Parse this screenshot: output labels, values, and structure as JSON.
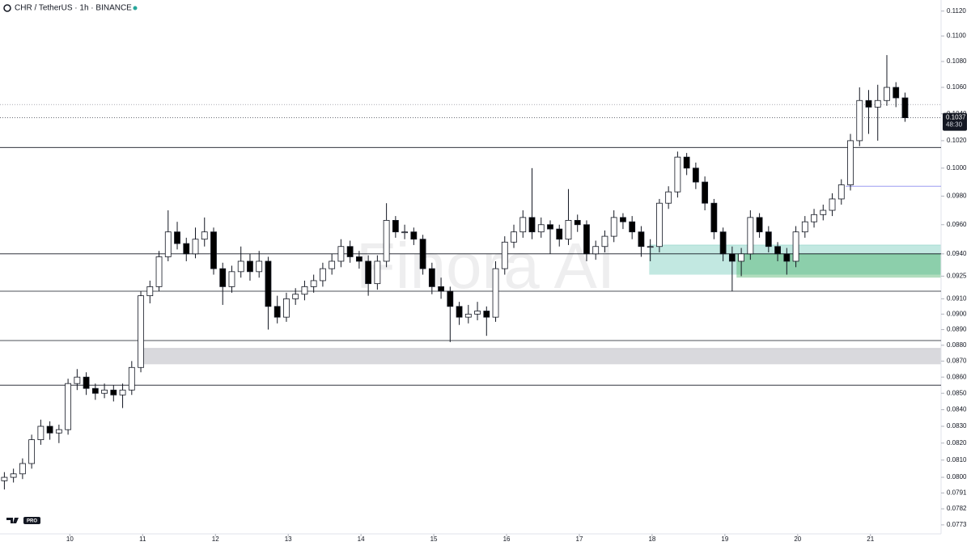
{
  "chart_data": {
    "type": "candlestick",
    "title": "CHR / TetherUS · 1h · BINANCE",
    "watermark": "Finora AI",
    "badge": "PRO",
    "log_scale": true,
    "up_color": "#ffffff",
    "down_color": "#000000",
    "xlim": [
      9.04,
      21.97
    ],
    "xticks": [
      10,
      11,
      12,
      13,
      14,
      15,
      16,
      17,
      18,
      19,
      20,
      21
    ],
    "ylim": [
      0.0768,
      0.1129
    ],
    "yticks": [
      {
        "value": 0.112,
        "label": "0.1120"
      },
      {
        "value": 0.11,
        "label": "0.1100"
      },
      {
        "value": 0.108,
        "label": "0.1080"
      },
      {
        "value": 0.106,
        "label": "0.1060"
      },
      {
        "value": 0.104,
        "label": "0.1040"
      },
      {
        "value": 0.102,
        "label": "0.1020"
      },
      {
        "value": 0.1,
        "label": "0.1000"
      },
      {
        "value": 0.098,
        "label": "0.0980"
      },
      {
        "value": 0.096,
        "label": "0.0960"
      },
      {
        "value": 0.094,
        "label": "0.0940"
      },
      0.0925,
      {
        "value": 0.091,
        "label": "0.0910"
      },
      {
        "value": 0.09,
        "label": "0.0900"
      },
      {
        "value": 0.089,
        "label": "0.0890"
      },
      {
        "value": 0.088,
        "label": "0.0880"
      },
      {
        "value": 0.087,
        "label": "0.0870"
      },
      {
        "value": 0.086,
        "label": "0.0860"
      },
      {
        "value": 0.085,
        "label": "0.0850"
      },
      {
        "value": 0.084,
        "label": "0.0840"
      },
      {
        "value": 0.083,
        "label": "0.0830"
      },
      {
        "value": 0.082,
        "label": "0.0820"
      },
      {
        "value": 0.081,
        "label": "0.0810"
      },
      {
        "value": 0.08,
        "label": "0.0800"
      },
      0.0791,
      0.0782,
      0.0773
    ],
    "last_price": 0.1037,
    "countdown": "48:30",
    "levels": [
      0.1015,
      0.094,
      0.0915,
      0.0883,
      0.0855
    ],
    "dotted_levels": [
      0.1047
    ],
    "blue_level": {
      "from": 20.66,
      "value": 0.0987,
      "color": "#9c9cf0"
    },
    "zones": [
      {
        "from": 10.99,
        "top": 0.0878,
        "bottom": 0.0868,
        "color": "rgba(160,160,170,0.4)"
      },
      {
        "from": 17.96,
        "top": 0.0946,
        "bottom": 0.0926,
        "color": "rgba(80,190,170,0.35)"
      },
      {
        "from": 19.16,
        "top": 0.094,
        "bottom": 0.0924,
        "color": "rgba(60,170,90,0.4)"
      }
    ],
    "x": [
      9.1,
      9.225,
      9.35,
      9.475,
      9.6,
      9.725,
      9.85,
      9.975,
      10.1,
      10.225,
      10.35,
      10.475,
      10.6,
      10.725,
      10.85,
      10.975,
      11.1,
      11.225,
      11.35,
      11.475,
      11.6,
      11.725,
      11.85,
      11.975,
      12.1,
      12.225,
      12.35,
      12.475,
      12.6,
      12.725,
      12.85,
      12.975,
      13.1,
      13.225,
      13.35,
      13.475,
      13.6,
      13.725,
      13.85,
      13.975,
      14.1,
      14.225,
      14.35,
      14.475,
      14.6,
      14.725,
      14.85,
      14.975,
      15.1,
      15.225,
      15.35,
      15.475,
      15.6,
      15.725,
      15.85,
      15.975,
      16.1,
      16.225,
      16.35,
      16.475,
      16.6,
      16.725,
      16.85,
      16.975,
      17.1,
      17.225,
      17.35,
      17.475,
      17.6,
      17.725,
      17.85,
      17.975,
      18.1,
      18.225,
      18.35,
      18.475,
      18.6,
      18.725,
      18.85,
      18.975,
      19.1,
      19.225,
      19.35,
      19.475,
      19.6,
      19.725,
      19.85,
      19.975,
      20.1,
      20.225,
      20.35,
      20.475,
      20.6,
      20.725,
      20.85,
      20.975,
      21.1,
      21.225,
      21.35,
      21.475
    ],
    "candles": [
      [
        0.0798,
        0.0803,
        0.0793,
        0.08
      ],
      [
        0.08,
        0.0805,
        0.0797,
        0.0802
      ],
      [
        0.0802,
        0.0811,
        0.0799,
        0.0808
      ],
      [
        0.0808,
        0.0825,
        0.0805,
        0.0822
      ],
      [
        0.0822,
        0.0834,
        0.0819,
        0.083
      ],
      [
        0.083,
        0.0833,
        0.0822,
        0.0826
      ],
      [
        0.0826,
        0.0831,
        0.082,
        0.0828
      ],
      [
        0.0828,
        0.0859,
        0.0825,
        0.0856
      ],
      [
        0.0856,
        0.0865,
        0.0852,
        0.086
      ],
      [
        0.086,
        0.0863,
        0.0849,
        0.0853
      ],
      [
        0.0853,
        0.0856,
        0.0846,
        0.085
      ],
      [
        0.085,
        0.0856,
        0.0847,
        0.0852
      ],
      [
        0.0852,
        0.0855,
        0.0845,
        0.0849
      ],
      [
        0.0849,
        0.0856,
        0.0841,
        0.0852
      ],
      [
        0.0852,
        0.087,
        0.0849,
        0.0866
      ],
      [
        0.0866,
        0.0915,
        0.0863,
        0.0912
      ],
      [
        0.0912,
        0.0922,
        0.0907,
        0.0918
      ],
      [
        0.0918,
        0.0942,
        0.0915,
        0.0938
      ],
      [
        0.0938,
        0.097,
        0.0935,
        0.0955
      ],
      [
        0.0955,
        0.0962,
        0.0943,
        0.0947
      ],
      [
        0.0947,
        0.0951,
        0.0935,
        0.094
      ],
      [
        0.094,
        0.0958,
        0.0937,
        0.095
      ],
      [
        0.095,
        0.0965,
        0.0945,
        0.0955
      ],
      [
        0.0955,
        0.0958,
        0.0926,
        0.093
      ],
      [
        0.093,
        0.0934,
        0.0906,
        0.0918
      ],
      [
        0.0918,
        0.0932,
        0.0914,
        0.0928
      ],
      [
        0.0928,
        0.0945,
        0.0924,
        0.0935
      ],
      [
        0.0935,
        0.094,
        0.0922,
        0.0928
      ],
      [
        0.0928,
        0.0942,
        0.0924,
        0.0935
      ],
      [
        0.0935,
        0.0938,
        0.089,
        0.0905
      ],
      [
        0.0905,
        0.0912,
        0.0894,
        0.0898
      ],
      [
        0.0898,
        0.0914,
        0.0895,
        0.091
      ],
      [
        0.091,
        0.0917,
        0.0906,
        0.0913
      ],
      [
        0.0913,
        0.0922,
        0.0909,
        0.0918
      ],
      [
        0.0918,
        0.0926,
        0.0914,
        0.0922
      ],
      [
        0.0922,
        0.0934,
        0.0918,
        0.093
      ],
      [
        0.093,
        0.094,
        0.0926,
        0.0935
      ],
      [
        0.0935,
        0.095,
        0.0931,
        0.0945
      ],
      [
        0.0945,
        0.0949,
        0.0934,
        0.0938
      ],
      [
        0.0938,
        0.0942,
        0.093,
        0.0935
      ],
      [
        0.0935,
        0.0939,
        0.0912,
        0.092
      ],
      [
        0.092,
        0.0939,
        0.0916,
        0.0935
      ],
      [
        0.0935,
        0.0975,
        0.0931,
        0.0963
      ],
      [
        0.0963,
        0.0966,
        0.0951,
        0.0955
      ],
      [
        0.0955,
        0.096,
        0.095,
        0.0955
      ],
      [
        0.0955,
        0.0958,
        0.0946,
        0.095
      ],
      [
        0.095,
        0.0953,
        0.0926,
        0.093
      ],
      [
        0.093,
        0.0934,
        0.0913,
        0.0918
      ],
      [
        0.0918,
        0.0924,
        0.091,
        0.0915
      ],
      [
        0.0915,
        0.0918,
        0.0882,
        0.0905
      ],
      [
        0.0905,
        0.0908,
        0.0893,
        0.0898
      ],
      [
        0.0898,
        0.0906,
        0.0894,
        0.09
      ],
      [
        0.09,
        0.0908,
        0.0896,
        0.0902
      ],
      [
        0.0902,
        0.0905,
        0.0886,
        0.0898
      ],
      [
        0.0898,
        0.0935,
        0.0895,
        0.093
      ],
      [
        0.093,
        0.0952,
        0.0926,
        0.0948
      ],
      [
        0.0948,
        0.096,
        0.0944,
        0.0955
      ],
      [
        0.0955,
        0.097,
        0.0951,
        0.0965
      ],
      [
        0.0965,
        0.1,
        0.095,
        0.0955
      ],
      [
        0.0955,
        0.0965,
        0.0951,
        0.096
      ],
      [
        0.096,
        0.0963,
        0.094,
        0.0957
      ],
      [
        0.0957,
        0.096,
        0.0945,
        0.095
      ],
      [
        0.095,
        0.0985,
        0.0946,
        0.0963
      ],
      [
        0.0963,
        0.0967,
        0.0955,
        0.096
      ],
      [
        0.096,
        0.0963,
        0.0935,
        0.094
      ],
      [
        0.094,
        0.0949,
        0.0936,
        0.0945
      ],
      [
        0.0945,
        0.0956,
        0.0941,
        0.0952
      ],
      [
        0.0952,
        0.097,
        0.0948,
        0.0965
      ],
      [
        0.0965,
        0.0968,
        0.0957,
        0.0962
      ],
      [
        0.0962,
        0.0966,
        0.095,
        0.0955
      ],
      [
        0.0955,
        0.0959,
        0.0938,
        0.0945
      ],
      [
        0.0945,
        0.095,
        0.0935,
        0.0945
      ],
      [
        0.0945,
        0.0978,
        0.0941,
        0.0975
      ],
      [
        0.0975,
        0.0987,
        0.0971,
        0.0983
      ],
      [
        0.0983,
        0.1012,
        0.0979,
        0.1008
      ],
      [
        0.1008,
        0.1011,
        0.0995,
        0.1
      ],
      [
        0.1,
        0.1004,
        0.0985,
        0.099
      ],
      [
        0.099,
        0.0994,
        0.097,
        0.0975
      ],
      [
        0.0975,
        0.0978,
        0.095,
        0.0955
      ],
      [
        0.0955,
        0.0958,
        0.0935,
        0.094
      ],
      [
        0.094,
        0.0945,
        0.0915,
        0.0935
      ],
      [
        0.0935,
        0.0944,
        0.0925,
        0.094
      ],
      [
        0.094,
        0.097,
        0.0936,
        0.0965
      ],
      [
        0.0965,
        0.0968,
        0.0951,
        0.0955
      ],
      [
        0.0955,
        0.0959,
        0.0941,
        0.0945
      ],
      [
        0.0945,
        0.0948,
        0.0935,
        0.094
      ],
      [
        0.094,
        0.0944,
        0.0926,
        0.0935
      ],
      [
        0.0935,
        0.0959,
        0.0931,
        0.0955
      ],
      [
        0.0955,
        0.0966,
        0.0951,
        0.0962
      ],
      [
        0.0962,
        0.0971,
        0.0958,
        0.0967
      ],
      [
        0.0967,
        0.0974,
        0.0963,
        0.097
      ],
      [
        0.097,
        0.0982,
        0.0966,
        0.0978
      ],
      [
        0.0978,
        0.0992,
        0.0974,
        0.0988
      ],
      [
        0.0988,
        0.1025,
        0.0984,
        0.102
      ],
      [
        0.102,
        0.106,
        0.1016,
        0.105
      ],
      [
        0.105,
        0.1058,
        0.1025,
        0.1045
      ],
      [
        0.1045,
        0.1062,
        0.102,
        0.105
      ],
      [
        0.105,
        0.1085,
        0.1046,
        0.106
      ],
      [
        0.106,
        0.1064,
        0.1045,
        0.1052
      ],
      [
        0.1052,
        0.1056,
        0.1034,
        0.1037
      ]
    ]
  }
}
